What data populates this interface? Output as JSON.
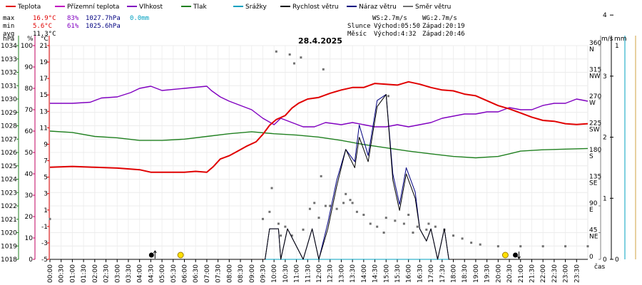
{
  "chart_data": {
    "type": "line",
    "title": "28.4.2025",
    "x_unit_label": "čas",
    "legend": [
      {
        "label": "Teplota",
        "color": "#e00000"
      },
      {
        "label": "Přízemní teplota",
        "color": "#c000c0"
      },
      {
        "label": "Vlhkost",
        "color": "#8000c0"
      },
      {
        "label": "Tlak",
        "color": "#208020"
      },
      {
        "label": "Srážky",
        "color": "#00a0c0"
      },
      {
        "label": "Rychlost větru",
        "color": "#000000"
      },
      {
        "label": "Náraz větru",
        "color": "#000080"
      },
      {
        "label": "Směr větru",
        "color": "#707070"
      }
    ],
    "stats": {
      "max": {
        "label": "max",
        "temp": "16.9°C",
        "hum": "83%",
        "press": "1027.7hPa",
        "rain": "0.0mm"
      },
      "min": {
        "label": "min",
        "temp": "5.6°C",
        "hum": "61%",
        "press": "1025.6hPa"
      },
      "avg": {
        "label": "avg",
        "temp": "11.3°C"
      }
    },
    "wind_info": {
      "ws": "WS:2.7m/s",
      "wg": "WG:2.7m/s"
    },
    "sun": {
      "label": "Slunce",
      "rise": "Východ:05:50",
      "set": "Západ:20:19"
    },
    "moon": {
      "label": "Měsíc",
      "rise": "Východ:4:32",
      "set": "Západ:20:46"
    },
    "axes": {
      "hpa": {
        "unit": "hPa",
        "ticks": [
          "1034",
          "1033",
          "1032",
          "1031",
          "1030",
          "1029",
          "1028",
          "1027",
          "1026",
          "1025",
          "1024",
          "1023",
          "1022",
          "1021",
          "1020",
          "1019",
          "1018"
        ]
      },
      "pct": {
        "unit": "%",
        "ticks": [
          "100",
          "90",
          "80",
          "70",
          "60",
          "50",
          "40",
          "30",
          "20",
          "10",
          "0"
        ]
      },
      "degc": {
        "unit": "°C",
        "ticks": [
          "21",
          "19",
          "17",
          "15",
          "13",
          "11",
          "9",
          "7",
          "5",
          "3",
          "1",
          "-1",
          "-3",
          "-5"
        ]
      },
      "dir": {
        "ticks": [
          {
            "v": "360",
            "d": "N"
          },
          {
            "v": "315",
            "d": "NW"
          },
          {
            "v": "270",
            "d": "W"
          },
          {
            "v": "225",
            "d": "SW"
          },
          {
            "v": "180",
            "d": "S"
          },
          {
            "v": "135",
            "d": "SE"
          },
          {
            "v": "90",
            "d": "E"
          },
          {
            "v": "45",
            "d": "NE"
          },
          {
            "v": "0",
            "d": ""
          }
        ]
      },
      "ms": {
        "unit": "m/s",
        "ticks": [
          "4",
          "3",
          "2",
          "1",
          "0"
        ]
      },
      "mm": {
        "unit": "mm",
        "ticks": [
          "1",
          "0"
        ]
      }
    },
    "x_ticks": [
      "00:00",
      "00:30",
      "01:00",
      "01:30",
      "02:00",
      "02:30",
      "03:00",
      "03:30",
      "04:00",
      "04:30",
      "05:00",
      "05:30",
      "06:00",
      "06:30",
      "07:00",
      "07:30",
      "08:00",
      "08:30",
      "09:00",
      "09:30",
      "10:00",
      "10:30",
      "11:00",
      "11:30",
      "12:00",
      "12:30",
      "13:00",
      "13:30",
      "14:00",
      "14:30",
      "15:00",
      "15:30",
      "16:00",
      "16:30",
      "17:00",
      "17:30",
      "18:00",
      "18:30",
      "19:00",
      "19:30",
      "20:00",
      "20:30",
      "21:00",
      "21:30",
      "22:00",
      "22:30",
      "23:00",
      "23:30"
    ],
    "series": [
      {
        "name": "Teplota",
        "unit": "°C",
        "color": "#e00000",
        "points": [
          [
            0,
            6.2
          ],
          [
            1,
            6.3
          ],
          [
            2,
            6.2
          ],
          [
            3,
            6.1
          ],
          [
            4,
            5.9
          ],
          [
            4.5,
            5.6
          ],
          [
            5,
            5.6
          ],
          [
            5.5,
            5.6
          ],
          [
            6,
            5.6
          ],
          [
            6.5,
            5.7
          ],
          [
            7,
            5.6
          ],
          [
            7.3,
            6.3
          ],
          [
            7.6,
            7.2
          ],
          [
            8,
            7.6
          ],
          [
            8.4,
            8.2
          ],
          [
            8.8,
            8.8
          ],
          [
            9.2,
            9.3
          ],
          [
            9.5,
            10.2
          ],
          [
            9.8,
            11.3
          ],
          [
            10.1,
            12.0
          ],
          [
            10.5,
            12.5
          ],
          [
            10.8,
            13.4
          ],
          [
            11.1,
            14.0
          ],
          [
            11.5,
            14.5
          ],
          [
            12,
            14.7
          ],
          [
            12.5,
            15.2
          ],
          [
            13,
            15.6
          ],
          [
            13.5,
            15.9
          ],
          [
            14,
            15.9
          ],
          [
            14.5,
            16.4
          ],
          [
            15,
            16.3
          ],
          [
            15.5,
            16.2
          ],
          [
            16,
            16.6
          ],
          [
            16.5,
            16.3
          ],
          [
            17,
            15.9
          ],
          [
            17.5,
            15.6
          ],
          [
            18,
            15.5
          ],
          [
            18.5,
            15.1
          ],
          [
            19,
            14.9
          ],
          [
            19.5,
            14.3
          ],
          [
            20,
            13.7
          ],
          [
            20.5,
            13.3
          ],
          [
            21,
            12.8
          ],
          [
            21.5,
            12.3
          ],
          [
            22,
            11.9
          ],
          [
            22.5,
            11.8
          ],
          [
            23,
            11.5
          ],
          [
            23.5,
            11.4
          ],
          [
            24,
            11.5
          ]
        ]
      },
      {
        "name": "Vlhkost",
        "unit": "%",
        "color": "#8000c0",
        "points": [
          [
            0,
            73
          ],
          [
            1,
            73
          ],
          [
            1.8,
            73.5
          ],
          [
            2.3,
            75.5
          ],
          [
            3,
            76
          ],
          [
            3.6,
            78
          ],
          [
            4,
            80
          ],
          [
            4.5,
            81
          ],
          [
            5,
            79
          ],
          [
            6,
            80
          ],
          [
            7,
            81
          ],
          [
            7.2,
            79
          ],
          [
            7.6,
            76
          ],
          [
            8,
            74
          ],
          [
            8.5,
            72
          ],
          [
            9,
            70
          ],
          [
            9.5,
            66
          ],
          [
            10,
            63
          ],
          [
            10.3,
            66
          ],
          [
            10.8,
            64
          ],
          [
            11.3,
            62
          ],
          [
            11.8,
            62
          ],
          [
            12.3,
            64
          ],
          [
            13,
            63
          ],
          [
            13.5,
            64
          ],
          [
            14,
            63
          ],
          [
            14.5,
            62
          ],
          [
            15,
            62
          ],
          [
            15.5,
            63
          ],
          [
            16,
            62
          ],
          [
            16.5,
            63
          ],
          [
            17,
            64
          ],
          [
            17.5,
            66
          ],
          [
            18,
            67
          ],
          [
            18.5,
            68
          ],
          [
            19,
            68
          ],
          [
            19.5,
            69
          ],
          [
            20,
            69
          ],
          [
            20.5,
            71
          ],
          [
            21,
            70
          ],
          [
            21.5,
            70
          ],
          [
            22,
            72
          ],
          [
            22.5,
            73
          ],
          [
            23,
            73
          ],
          [
            23.5,
            75
          ],
          [
            24,
            74
          ]
        ]
      },
      {
        "name": "Tlak",
        "unit": "hPa",
        "color": "#208020",
        "points": [
          [
            0,
            1027.6
          ],
          [
            1,
            1027.5
          ],
          [
            2,
            1027.2
          ],
          [
            3,
            1027.1
          ],
          [
            4,
            1026.9
          ],
          [
            5,
            1026.9
          ],
          [
            6,
            1027.0
          ],
          [
            7,
            1027.2
          ],
          [
            8,
            1027.4
          ],
          [
            9,
            1027.55
          ],
          [
            10,
            1027.4
          ],
          [
            11,
            1027.3
          ],
          [
            12,
            1027.15
          ],
          [
            13,
            1026.9
          ],
          [
            14,
            1026.6
          ],
          [
            15,
            1026.35
          ],
          [
            16,
            1026.1
          ],
          [
            17,
            1025.9
          ],
          [
            18,
            1025.7
          ],
          [
            19,
            1025.6
          ],
          [
            20,
            1025.7
          ],
          [
            20.5,
            1025.9
          ],
          [
            21,
            1026.1
          ],
          [
            22,
            1026.2
          ],
          [
            23,
            1026.25
          ],
          [
            24,
            1026.3
          ]
        ]
      },
      {
        "name": "Rychlost větru",
        "unit": "m/s",
        "color": "#000000",
        "points": [
          [
            0,
            0
          ],
          [
            9.6,
            0
          ],
          [
            9.8,
            0.5
          ],
          [
            10.2,
            0.5
          ],
          [
            10.3,
            0
          ],
          [
            10.6,
            0.5
          ],
          [
            11.3,
            0
          ],
          [
            11.7,
            0.5
          ],
          [
            12,
            0
          ],
          [
            12.4,
            0.5
          ],
          [
            12.8,
            1.2
          ],
          [
            13.2,
            1.8
          ],
          [
            13.6,
            1.5
          ],
          [
            13.8,
            2.0
          ],
          [
            14.2,
            1.6
          ],
          [
            14.6,
            2.5
          ],
          [
            15,
            2.7
          ],
          [
            15.3,
            1.3
          ],
          [
            15.6,
            0.8
          ],
          [
            15.9,
            1.4
          ],
          [
            16.3,
            1.0
          ],
          [
            16.5,
            0.5
          ],
          [
            16.8,
            0.3
          ],
          [
            17,
            0.5
          ],
          [
            17.3,
            0
          ],
          [
            17.6,
            0.5
          ],
          [
            17.8,
            0
          ],
          [
            24,
            0
          ]
        ]
      },
      {
        "name": "Náraz větru",
        "unit": "m/s",
        "color": "#000080",
        "points": [
          [
            0,
            0
          ],
          [
            9.6,
            0
          ],
          [
            9.8,
            0.5
          ],
          [
            10.2,
            0.5
          ],
          [
            10.3,
            0
          ],
          [
            10.6,
            0.5
          ],
          [
            11.3,
            0
          ],
          [
            11.7,
            0.5
          ],
          [
            12,
            0
          ],
          [
            12.4,
            0.6
          ],
          [
            12.8,
            1.3
          ],
          [
            13.2,
            1.8
          ],
          [
            13.6,
            1.6
          ],
          [
            13.8,
            2.2
          ],
          [
            14.2,
            1.7
          ],
          [
            14.6,
            2.6
          ],
          [
            15,
            2.7
          ],
          [
            15.3,
            1.4
          ],
          [
            15.6,
            0.9
          ],
          [
            15.9,
            1.5
          ],
          [
            16.3,
            1.1
          ],
          [
            16.5,
            0.5
          ],
          [
            16.8,
            0.3
          ],
          [
            17,
            0.5
          ],
          [
            17.3,
            0
          ],
          [
            17.6,
            0.5
          ],
          [
            17.8,
            0
          ],
          [
            24,
            0
          ]
        ]
      },
      {
        "name": "Srážky",
        "unit": "mm",
        "color": "#00a0c0",
        "points": [
          [
            0,
            0
          ],
          [
            24,
            0
          ]
        ]
      }
    ],
    "wind_direction_points": [
      [
        0,
        68
      ],
      [
        9.5,
        68
      ],
      [
        9.8,
        80
      ],
      [
        10.2,
        60
      ],
      [
        10.5,
        55
      ],
      [
        10.8,
        40
      ],
      [
        11.3,
        50
      ],
      [
        11.6,
        85
      ],
      [
        12,
        70
      ],
      [
        12.3,
        90
      ],
      [
        12.8,
        85
      ],
      [
        13.1,
        95
      ],
      [
        13.4,
        100
      ],
      [
        13.7,
        80
      ],
      [
        14,
        75
      ],
      [
        14.3,
        60
      ],
      [
        14.6,
        55
      ],
      [
        15,
        70
      ],
      [
        15.4,
        65
      ],
      [
        15.8,
        60
      ],
      [
        16,
        75
      ],
      [
        16.4,
        55
      ],
      [
        16.8,
        50
      ],
      [
        17.2,
        55
      ],
      [
        17.6,
        50
      ],
      [
        18,
        40
      ],
      [
        18.4,
        35
      ],
      [
        18.8,
        28
      ],
      [
        19.2,
        25
      ],
      [
        20,
        22
      ],
      [
        21,
        22
      ],
      [
        22,
        22
      ],
      [
        23,
        22
      ],
      [
        24,
        22
      ],
      [
        10.1,
        350
      ],
      [
        10.7,
        345
      ],
      [
        10.9,
        330
      ],
      [
        11.2,
        340
      ],
      [
        12.2,
        320
      ],
      [
        12.5,
        90
      ],
      [
        13.2,
        110
      ],
      [
        15.1,
        275
      ],
      [
        13.5,
        95
      ],
      [
        11.8,
        95
      ],
      [
        12.1,
        140
      ],
      [
        10.3,
        40
      ],
      [
        9.9,
        120
      ],
      [
        14.9,
        45
      ],
      [
        16.2,
        45
      ],
      [
        16.9,
        60
      ]
    ],
    "sun_events": [
      {
        "type": "moonrise",
        "t": 4.53
      },
      {
        "type": "sunrise",
        "t": 5.83
      },
      {
        "type": "sunset",
        "t": 20.32
      },
      {
        "type": "moonset",
        "t": 20.77
      }
    ]
  }
}
